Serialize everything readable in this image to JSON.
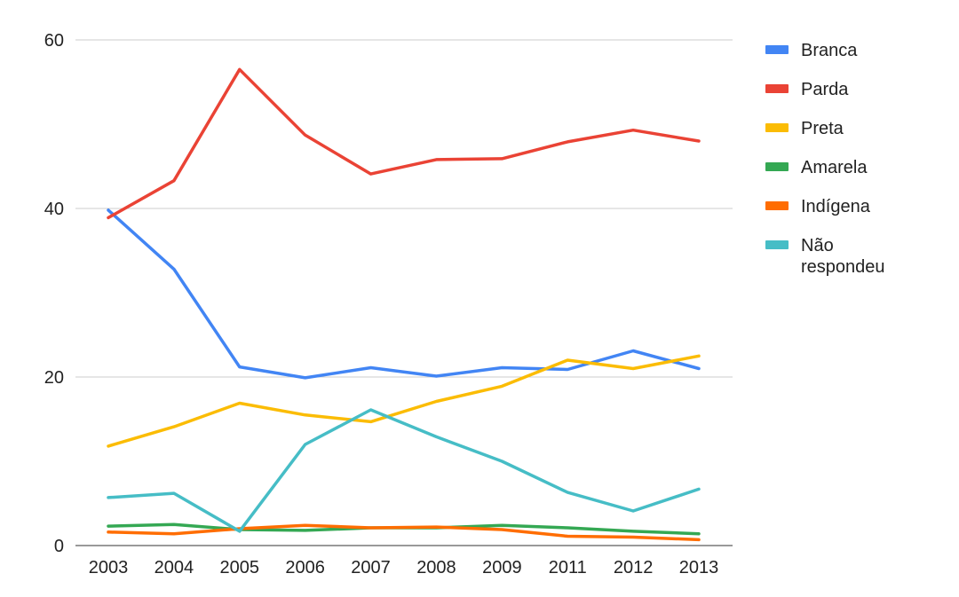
{
  "chart_data": {
    "type": "line",
    "title": "",
    "xlabel": "",
    "ylabel": "",
    "categories": [
      "2003",
      "2004",
      "2005",
      "2006",
      "2007",
      "2008",
      "2009",
      "2011",
      "2012",
      "2013"
    ],
    "ylim": [
      0,
      60
    ],
    "yticks": [
      "0",
      "20",
      "40",
      "60"
    ],
    "grid": true,
    "legend_position": "right",
    "series": [
      {
        "name": "Branca",
        "color": "#4285f4",
        "values": [
          39.8,
          32.8,
          21.2,
          19.9,
          21.1,
          20.1,
          21.1,
          20.9,
          23.1,
          21.0
        ]
      },
      {
        "name": "Parda",
        "color": "#ea4335",
        "values": [
          38.9,
          43.3,
          56.5,
          48.7,
          44.1,
          45.8,
          45.9,
          47.9,
          49.3,
          48.0
        ]
      },
      {
        "name": "Preta",
        "color": "#fbbc04",
        "values": [
          11.8,
          14.1,
          16.9,
          15.5,
          14.7,
          17.1,
          18.9,
          22.0,
          21.0,
          22.5
        ]
      },
      {
        "name": "Amarela",
        "color": "#34a853",
        "values": [
          2.3,
          2.5,
          1.9,
          1.8,
          2.1,
          2.1,
          2.4,
          2.1,
          1.7,
          1.4
        ]
      },
      {
        "name": "Indígena",
        "color": "#ff6d01",
        "values": [
          1.6,
          1.4,
          2.0,
          2.4,
          2.1,
          2.2,
          1.9,
          1.1,
          1.0,
          0.7
        ]
      },
      {
        "name": "Não respondeu",
        "color": "#46bdc6",
        "values": [
          5.7,
          6.2,
          1.7,
          12.0,
          16.1,
          12.9,
          10.0,
          6.3,
          4.1,
          6.7
        ]
      }
    ]
  }
}
